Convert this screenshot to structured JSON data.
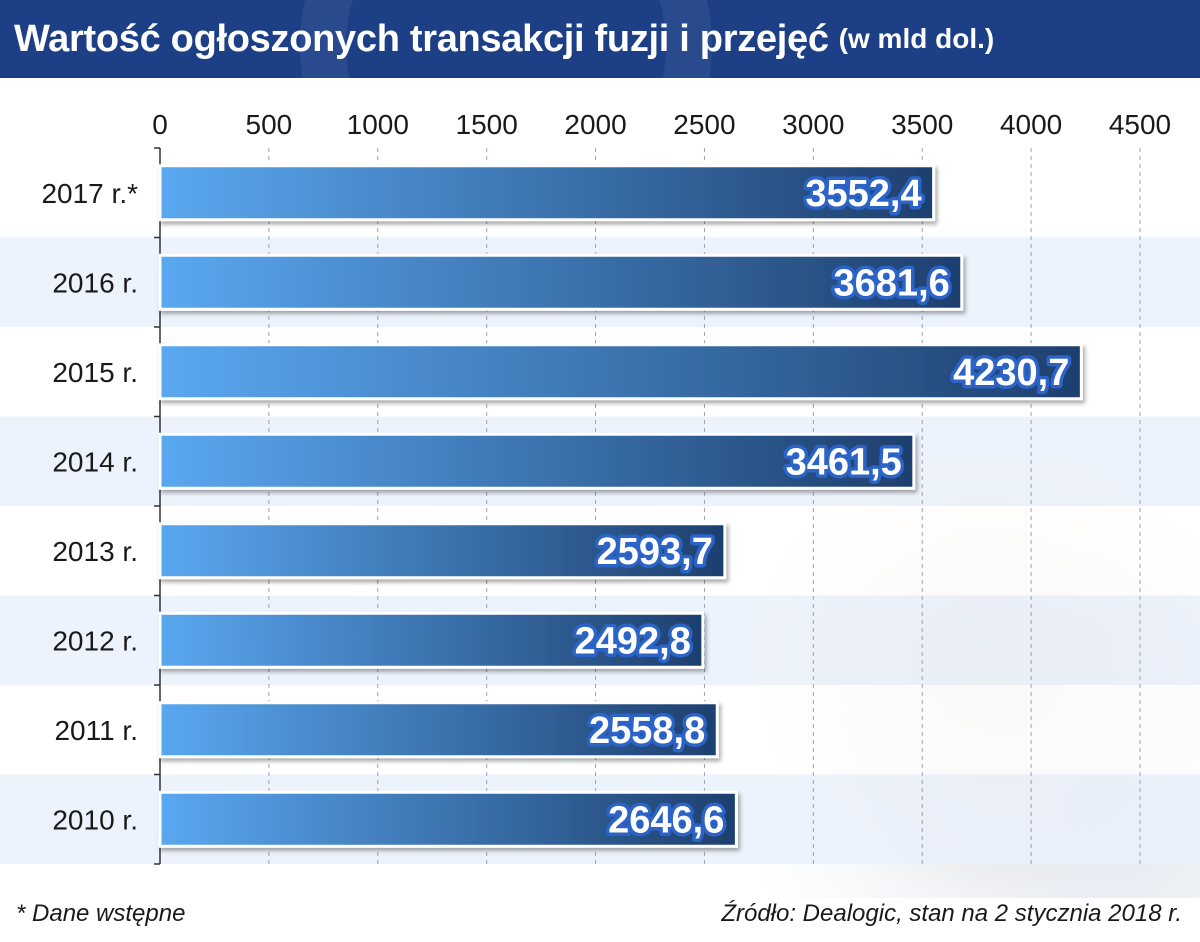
{
  "header": {
    "title": "Wartość ogłoszonych transakcji fuzji i przejęć",
    "unit": "(w mld dol.)"
  },
  "chart_data": {
    "type": "bar",
    "orientation": "horizontal",
    "title": "Wartość ogłoszonych transakcji fuzji i przejęć",
    "unit_label": "(w mld dol.)",
    "categories": [
      "2017 r.*",
      "2016 r.",
      "2015 r.",
      "2014 r.",
      "2013 r.",
      "2012 r.",
      "2011 r.",
      "2010 r."
    ],
    "values": [
      3552.4,
      3681.6,
      4230.7,
      3461.5,
      2593.7,
      2492.8,
      2558.8,
      2646.6
    ],
    "data_labels": [
      "3552,4",
      "3681,6",
      "4230,7",
      "3461,5",
      "2593,7",
      "2492,8",
      "2558,8",
      "2646,6"
    ],
    "x_ticks": [
      0,
      500,
      1000,
      1500,
      2000,
      2500,
      3000,
      3500,
      4000,
      4500
    ],
    "xlim": [
      0,
      4500
    ],
    "axis_position": "top",
    "grid": "vertical dashed",
    "legend": "none"
  },
  "colors": {
    "header_bg": "#1c3f86",
    "bar_light": "#5aa8f0",
    "bar_dark": "#1e3f6e",
    "band_light": "#eaf1fb",
    "band_white": "#ffffff",
    "label_outline": "#2b63c7"
  },
  "footer": {
    "note": "* Dane wstępne",
    "source": "Źródło: Dealogic, stan na 2 stycznia 2018 r."
  }
}
